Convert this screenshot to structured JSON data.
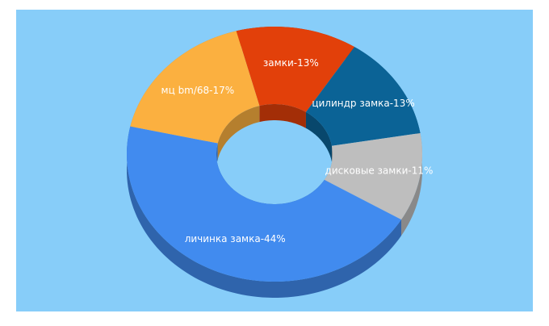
{
  "chart_data": {
    "type": "donut3d",
    "values": [
      13,
      13,
      11,
      44,
      17
    ],
    "value_labels": [
      "замки-13%",
      "цилиндр замка-13%",
      "дисковые замки-11%",
      "личинка замка-44%",
      "мц bm/68-17%"
    ],
    "colors": [
      "#e2400a",
      "#0b6396",
      "#bebebe",
      "#418bef",
      "#fbb040"
    ]
  }
}
